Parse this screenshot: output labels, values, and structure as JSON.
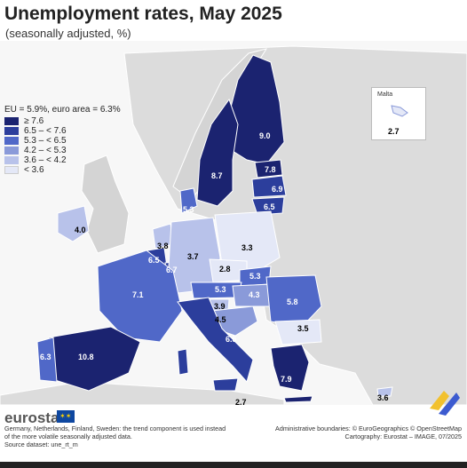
{
  "title": "Unemployment rates, May 2025",
  "subtitle": "(seasonally adjusted, %)",
  "legend": {
    "title": "EU = 5.9%, euro area = 6.3%",
    "classes": [
      {
        "label": "≥ 7.6",
        "color": "#1b2370"
      },
      {
        "label": "6.5 – < 7.6",
        "color": "#2c3e9c"
      },
      {
        "label": "5.3 – < 6.5",
        "color": "#5068c8"
      },
      {
        "label": "4.2 – < 5.3",
        "color": "#8a9ad9"
      },
      {
        "label": "3.6 – < 4.2",
        "color": "#b8c2ea"
      },
      {
        "label": "< 3.6",
        "color": "#e4e8f7"
      }
    ]
  },
  "inset": {
    "name": "Malta",
    "value": "2.7"
  },
  "chart_data": {
    "type": "map",
    "title": "Unemployment rates, May 2025",
    "unit": "%",
    "values": [
      {
        "area": "Finland",
        "value": 9.0
      },
      {
        "area": "Sweden",
        "value": 8.7
      },
      {
        "area": "Estonia",
        "value": 7.8
      },
      {
        "area": "Latvia",
        "value": 6.9
      },
      {
        "area": "Lithuania",
        "value": 6.5
      },
      {
        "area": "Denmark",
        "value": 5.3
      },
      {
        "area": "Ireland",
        "value": 4.0
      },
      {
        "area": "Netherlands",
        "value": 3.8
      },
      {
        "area": "Belgium",
        "value": 6.5
      },
      {
        "area": "Luxembourg",
        "value": 6.7
      },
      {
        "area": "Germany",
        "value": 3.7
      },
      {
        "area": "Poland",
        "value": 3.3
      },
      {
        "area": "Czechia",
        "value": 2.8
      },
      {
        "area": "Slovakia",
        "value": 5.3
      },
      {
        "area": "Austria",
        "value": 5.3
      },
      {
        "area": "Hungary",
        "value": 4.3
      },
      {
        "area": "Romania",
        "value": 5.8
      },
      {
        "area": "Slovenia",
        "value": 3.9
      },
      {
        "area": "Croatia",
        "value": 4.5
      },
      {
        "area": "Bulgaria",
        "value": 3.5
      },
      {
        "area": "France",
        "value": 7.1
      },
      {
        "area": "Spain",
        "value": 10.8
      },
      {
        "area": "Portugal",
        "value": 6.3
      },
      {
        "area": "Italy",
        "value": 6.5
      },
      {
        "area": "Malta",
        "value": 2.7
      },
      {
        "area": "Greece",
        "value": 7.9
      },
      {
        "area": "Cyprus",
        "value": 3.6
      }
    ]
  },
  "brand": "eurostat",
  "note_lines": [
    "Germany, Netherlands, Finland, Sweden: the trend component is used instead",
    "of the more volatile seasonally adjusted data.",
    "Source dataset: une_rt_m"
  ],
  "credit_lines": [
    "Administrative boundaries: © EuroGeographics © OpenStreetMap",
    "Cartography: Eurostat – IMAGE, 07/2025"
  ]
}
